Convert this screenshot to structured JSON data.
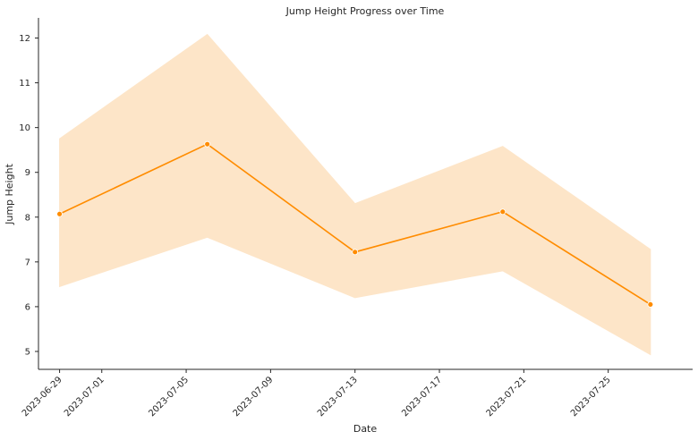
{
  "chart_data": {
    "type": "line",
    "title": "Jump Height Progress over Time",
    "xlabel": "Date",
    "ylabel": "Jump Height",
    "xlim": [
      "2023-06-28",
      "2023-07-29"
    ],
    "ylim": [
      4.6,
      12.45
    ],
    "x_ticks": [
      "2023-06-29",
      "2023-07-01",
      "2023-07-05",
      "2023-07-09",
      "2023-07-13",
      "2023-07-17",
      "2023-07-21",
      "2023-07-25"
    ],
    "y_ticks": [
      5,
      6,
      7,
      8,
      9,
      10,
      11,
      12
    ],
    "grid": false,
    "series": [
      {
        "color": "#ff8c00",
        "band_color": "#fde5c8",
        "points": [
          {
            "x": "2023-06-29",
            "y": 8.07,
            "lower": 6.45,
            "upper": 9.75
          },
          {
            "x": "2023-07-06",
            "y": 9.63,
            "lower": 7.55,
            "upper": 12.08
          },
          {
            "x": "2023-07-13",
            "y": 7.22,
            "lower": 6.2,
            "upper": 8.3
          },
          {
            "x": "2023-07-20",
            "y": 8.12,
            "lower": 6.8,
            "upper": 9.58
          },
          {
            "x": "2023-07-27",
            "y": 6.05,
            "lower": 4.93,
            "upper": 7.28
          }
        ]
      }
    ]
  }
}
